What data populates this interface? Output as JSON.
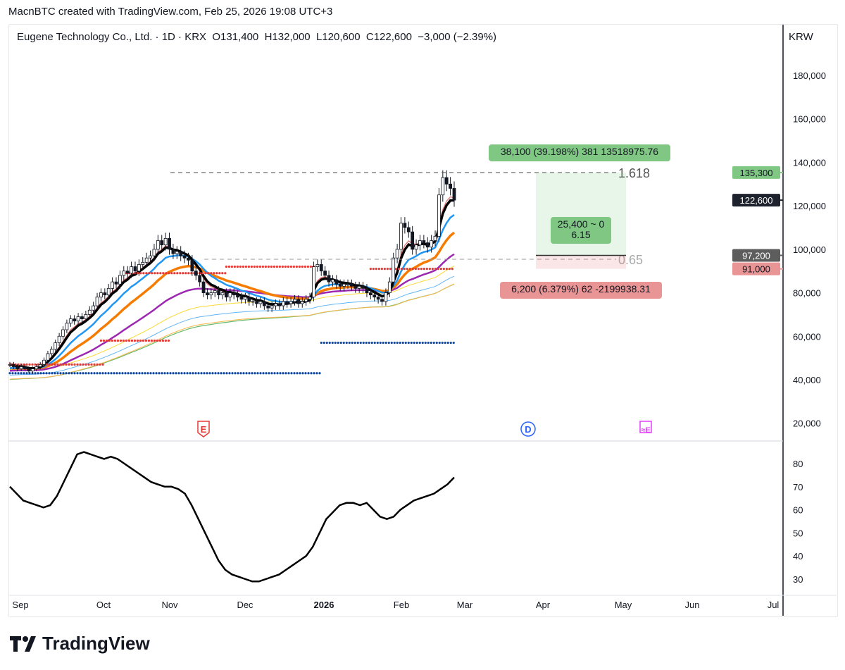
{
  "header": {
    "credit": "MacnBTC created with TradingView.com, Feb 25, 2026 19:08 UTC+3",
    "legend": "Eugene Technology Co., Ltd. · 1D · KRX  O131,400  H132,000  L120,600  C122,600  −3,000 (−2.39%)",
    "currency": "KRW"
  },
  "branding": {
    "logo_text": "TradingView"
  },
  "colors": {
    "up": "#ffffff",
    "down": "#131722",
    "ema_fast": "#000000",
    "ema_blue": "#2196f3",
    "ema_orange": "#f57c00",
    "ema_purple": "#9c27b0",
    "profit": "#81c784",
    "loss": "#e57373"
  },
  "chart_data": [
    {
      "type": "candlestick",
      "title": "Eugene Technology Co., Ltd. · 1D · KRX",
      "x_tick_labels": [
        "Sep",
        "Oct",
        "Nov",
        "Dec",
        "2026",
        "Feb",
        "Mar",
        "Apr",
        "May",
        "Jun",
        "Jul"
      ],
      "y_tick_labels": [
        "180,000",
        "160,000",
        "140,000",
        "120,000",
        "100,000",
        "80,000",
        "60,000",
        "40,000",
        "20,000"
      ],
      "ylim": [
        20000,
        190000
      ],
      "closes_thousands": [
        47,
        46,
        45,
        46,
        45,
        44,
        45,
        46,
        47,
        49,
        52,
        54,
        57,
        60,
        63,
        66,
        68,
        67,
        69,
        68,
        70,
        72,
        74,
        78,
        80,
        79,
        82,
        85,
        84,
        88,
        90,
        89,
        92,
        90,
        93,
        94,
        96,
        97,
        100,
        104,
        102,
        105,
        100,
        98,
        99,
        97,
        96,
        95,
        90,
        88,
        85,
        80,
        79,
        80,
        81,
        79,
        80,
        78,
        80,
        79,
        78,
        77,
        78,
        76,
        76,
        75,
        76,
        74,
        73,
        74,
        75,
        74,
        76,
        75,
        76,
        77,
        75,
        76,
        77,
        78,
        92,
        93,
        90,
        88,
        85,
        86,
        84,
        83,
        84,
        84,
        83,
        82,
        83,
        82,
        80,
        79,
        78,
        77,
        76,
        80,
        85,
        96,
        100,
        112,
        110,
        108,
        100,
        102,
        104,
        103,
        101,
        104,
        106,
        125,
        133,
        130,
        128,
        122.6
      ],
      "price_labels": [
        {
          "text": "135,300",
          "value": 135300,
          "color": "#81c784"
        },
        {
          "text": "122,600",
          "value": 122600,
          "color": "#1e222d"
        },
        {
          "text": "97,200",
          "value": 97200,
          "color": "#5d5d5d"
        },
        {
          "text": "91,000",
          "value": 91000,
          "color": "#e99595"
        }
      ],
      "position_tool": {
        "target_label": "38,100 (39.198%) 381 13518975.76",
        "center_label_1": "25,400 ~ 0",
        "center_label_2": "6.15",
        "stop_label": "6,200 (6.379%) 62 -2199938.31",
        "entry": 97200,
        "target": 135300,
        "stop": 91000
      },
      "fib_levels": [
        {
          "label": "1.618",
          "value": 135300
        },
        {
          "label": "0.65",
          "value": 95400
        }
      ],
      "event_markers": [
        {
          "label": "E",
          "color": "#e53935"
        },
        {
          "label": "D",
          "color": "#2962ff"
        },
        {
          "label": "≈E",
          "color": "#e040fb"
        }
      ]
    },
    {
      "type": "line",
      "y_tick_labels": [
        "80",
        "70",
        "60",
        "50",
        "40",
        "30"
      ],
      "ylim": [
        22,
        90
      ],
      "values": [
        70,
        67,
        64,
        63,
        62,
        61,
        62,
        66,
        72,
        78,
        84,
        85,
        84,
        83,
        82,
        83,
        82,
        80,
        78,
        76,
        74,
        72,
        71,
        70,
        70,
        69,
        67,
        62,
        56,
        50,
        44,
        38,
        34,
        32,
        31,
        30,
        29,
        29,
        30,
        31,
        32,
        34,
        36,
        38,
        40,
        44,
        50,
        56,
        59,
        62,
        63,
        63,
        62,
        63,
        60,
        57,
        56,
        57,
        60,
        62,
        64,
        65,
        66,
        67,
        69,
        71,
        74
      ]
    }
  ]
}
